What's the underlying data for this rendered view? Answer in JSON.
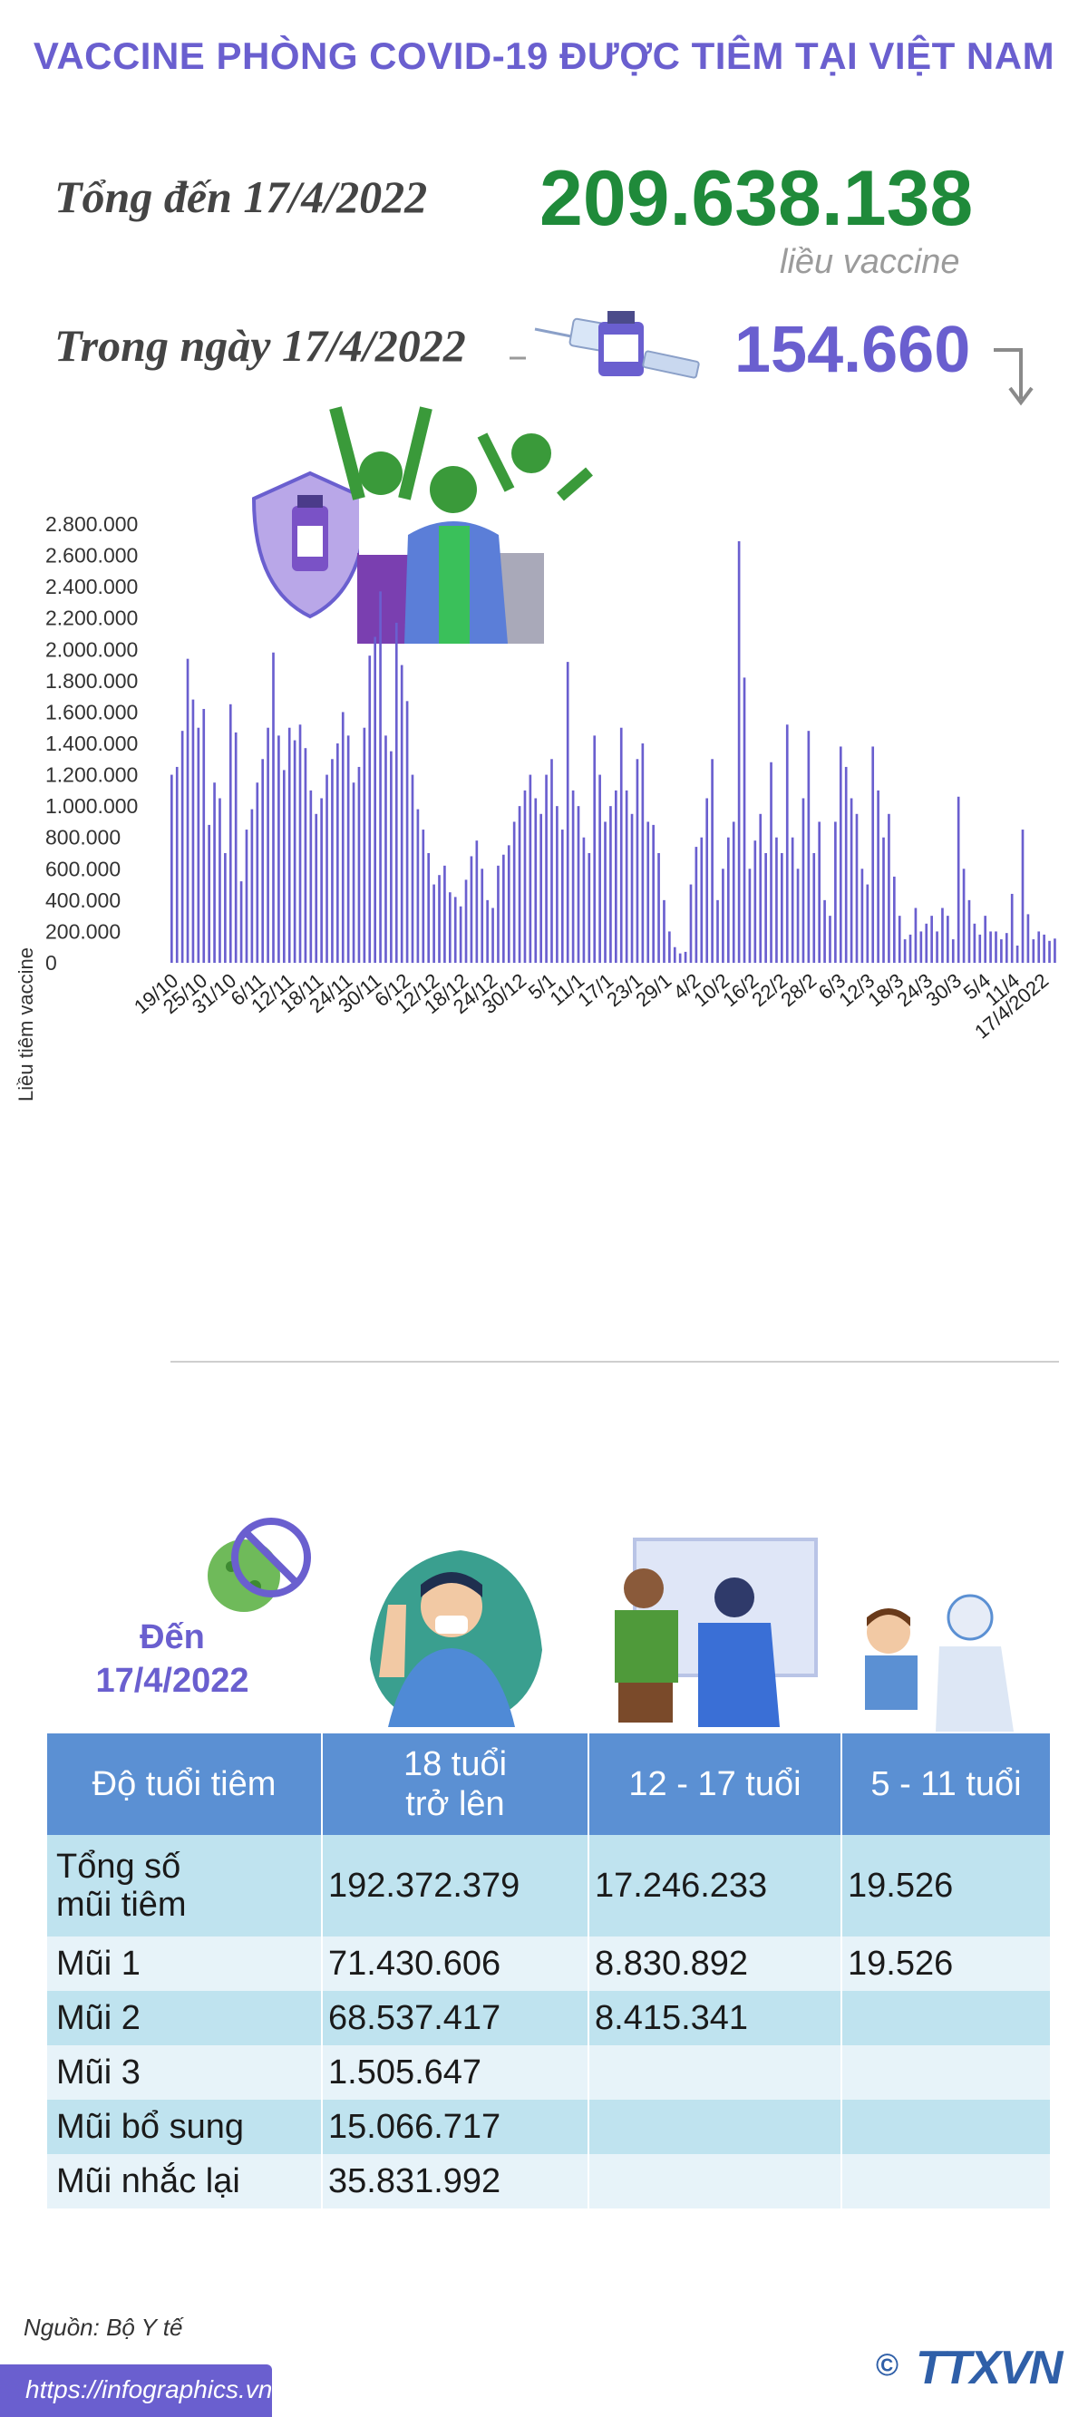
{
  "title": "VACCINE PHÒNG COVID-19 ĐƯỢC TIÊM TẠI VIỆT NAM",
  "total": {
    "label": "Tổng đến 17/4/2022",
    "value": "209.638.138",
    "unit": "liều vaccine"
  },
  "daily": {
    "label": "Trong ngày 17/4/2022",
    "value": "154.660",
    "trend": "down"
  },
  "colors": {
    "accent": "#6a5fcf",
    "total": "#1f8a3a",
    "table_header": "#5b90d3",
    "row_dark": "#bfe3ef",
    "row_light": "#e7f3f9"
  },
  "chart_data": {
    "type": "bar",
    "ylabel": "Liều tiêm vaccine",
    "ylim": [
      0,
      2800000
    ],
    "yticks": [
      "2.800.000",
      "2.600.000",
      "2.400.000",
      "2.200.000",
      "2.000.000",
      "1.800.000",
      "1.600.000",
      "1.400.000",
      "1.200.000",
      "1.000.000",
      "800.000",
      "600.000",
      "400.000",
      "200.000",
      "0"
    ],
    "xticks": [
      "19/10",
      "25/10",
      "31/10",
      "6/11",
      "12/11",
      "18/11",
      "24/11",
      "30/11",
      "6/12",
      "12/12",
      "18/12",
      "24/12",
      "30/12",
      "5/1",
      "11/1",
      "17/1",
      "23/1",
      "29/1",
      "4/2",
      "10/2",
      "16/2",
      "22/2",
      "28/2",
      "6/3",
      "12/3",
      "18/3",
      "24/3",
      "30/3",
      "5/4",
      "11/4",
      "17/4/2022"
    ],
    "values": [
      1200000,
      1250000,
      1480000,
      1940000,
      1680000,
      1500000,
      1620000,
      880000,
      1150000,
      1050000,
      700000,
      1650000,
      1470000,
      520000,
      850000,
      980000,
      1150000,
      1300000,
      1500000,
      1980000,
      1450000,
      1230000,
      1500000,
      1420000,
      1520000,
      1370000,
      1100000,
      950000,
      1050000,
      1200000,
      1300000,
      1400000,
      1600000,
      1450000,
      1150000,
      1250000,
      1500000,
      1960000,
      2080000,
      2370000,
      1450000,
      1350000,
      2170000,
      1900000,
      1670000,
      1200000,
      980000,
      850000,
      700000,
      500000,
      560000,
      620000,
      450000,
      420000,
      360000,
      530000,
      680000,
      780000,
      600000,
      400000,
      350000,
      620000,
      690000,
      750000,
      900000,
      1000000,
      1100000,
      1200000,
      1050000,
      950000,
      1200000,
      1300000,
      1000000,
      850000,
      1920000,
      1100000,
      1000000,
      800000,
      700000,
      1450000,
      1200000,
      900000,
      1000000,
      1100000,
      1500000,
      1100000,
      950000,
      1300000,
      1400000,
      900000,
      880000,
      700000,
      400000,
      200000,
      100000,
      60000,
      70000,
      500000,
      740000,
      800000,
      1050000,
      1300000,
      400000,
      600000,
      800000,
      900000,
      2690000,
      1820000,
      600000,
      780000,
      950000,
      700000,
      1280000,
      800000,
      700000,
      1520000,
      800000,
      600000,
      1050000,
      1480000,
      700000,
      900000,
      400000,
      300000,
      900000,
      1380000,
      1250000,
      1050000,
      950000,
      600000,
      500000,
      1380000,
      1100000,
      800000,
      950000,
      550000,
      300000,
      150000,
      180000,
      350000,
      200000,
      250000,
      300000,
      200000,
      350000,
      300000,
      150000,
      1060000,
      600000,
      400000,
      250000,
      180000,
      300000,
      200000,
      200000,
      150000,
      190000,
      440000,
      110000,
      850000,
      310000,
      150000,
      200000,
      180000,
      140000,
      154660
    ]
  },
  "table": {
    "date_label": "Đến\n17/4/2022",
    "headers": [
      "Độ tuổi tiêm",
      "18 tuổi\ntrở lên",
      "12 - 17 tuổi",
      "5 - 11 tuổi"
    ],
    "rows": [
      [
        "Tổng số\nmũi tiêm",
        "192.372.379",
        "17.246.233",
        "19.526"
      ],
      [
        "Mũi 1",
        "71.430.606",
        "8.830.892",
        "19.526"
      ],
      [
        "Mũi 2",
        "68.537.417",
        "8.415.341",
        ""
      ],
      [
        "Mũi 3",
        "1.505.647",
        "",
        ""
      ],
      [
        "Mũi bổ sung",
        "15.066.717",
        "",
        ""
      ],
      [
        "Mũi nhắc lại",
        "35.831.992",
        "",
        ""
      ]
    ]
  },
  "footer": {
    "source": "Nguồn: Bộ Y tế",
    "url": "https://infographics.vn",
    "copyright": "©",
    "agency": "TTXVN"
  },
  "icons": [
    "vaccine-syringe-icon",
    "shield-vaccine-icon",
    "celebrating-people-illustration",
    "virus-crossed-icon",
    "vaccinated-man-illustration",
    "doctor-vaccinating-illustration",
    "child-vaccination-illustration",
    "down-arrow-icon"
  ]
}
